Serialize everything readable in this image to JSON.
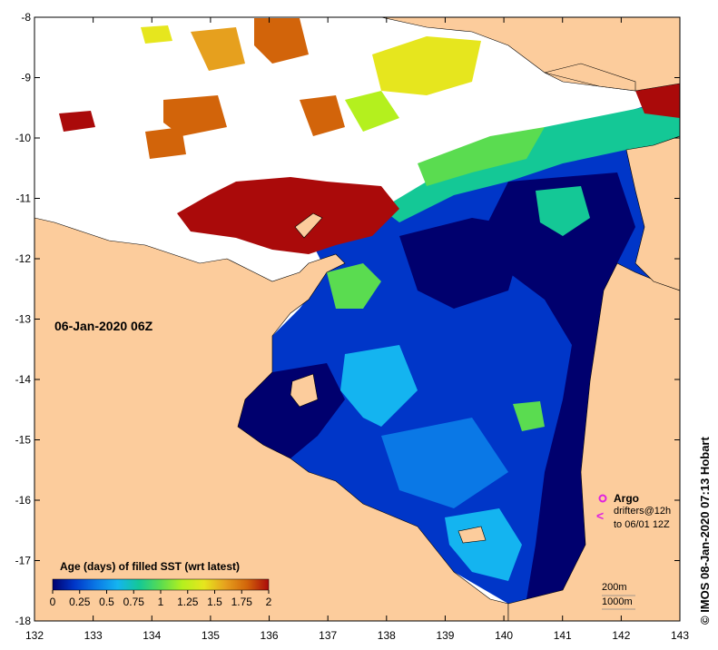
{
  "map": {
    "date_label": "06-Jan-2020 06Z",
    "credit": "© IMOS 08-Jan-2020 07:13 Hobart",
    "lon_ticks": [
      "132",
      "133",
      "134",
      "135",
      "136",
      "137",
      "138",
      "139",
      "140",
      "141",
      "142",
      "143"
    ],
    "lat_ticks": [
      "-8",
      "-9",
      "-10",
      "-11",
      "-12",
      "-13",
      "-14",
      "-15",
      "-16",
      "-17",
      "-18"
    ]
  },
  "legend": {
    "title": "Age (days) of filled SST (wrt latest)",
    "ticks": [
      "0",
      "0.25",
      "0.5",
      "0.75",
      "1",
      "1.25",
      "1.5",
      "1.75",
      "2"
    ],
    "colors": [
      "#00006e",
      "#0036c8",
      "#0a78e6",
      "#14b4f0",
      "#14c896",
      "#5adc50",
      "#b4f01e",
      "#e6e61e",
      "#e6a01e",
      "#d2640a",
      "#aa0a0a"
    ]
  },
  "markers": {
    "argo_label": "Argo",
    "drifters_label": "drifters@12h",
    "drifters_range": "to 06/01 12Z",
    "argo_color": "#e020e0",
    "drifter_symbol": "<"
  },
  "scale": {
    "contour_200": "200m",
    "contour_1000": "1000m"
  },
  "colors": {
    "land": "#fccc9c",
    "no_data": "#ffffff",
    "deep_blue": "#00006e",
    "mid_blue": "#0036c8",
    "light_blue": "#14b4f0",
    "teal": "#14c896",
    "green": "#5adc50",
    "yellow": "#e6e61e",
    "orange": "#d2640a",
    "dark_red": "#aa0a0a"
  }
}
